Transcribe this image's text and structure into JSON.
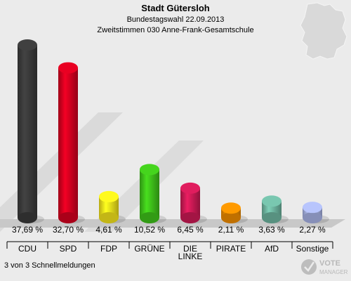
{
  "chart_data": {
    "type": "bar",
    "title": "Stadt Gütersloh",
    "subtitle": "Bundestagswahl 22.09.2013",
    "subtitle2": "Zweitstimmen 030 Anne-Frank-Gesamtschule",
    "categories": [
      "CDU",
      "SPD",
      "FDP",
      "GRÜNE",
      "DIE LINKE",
      "PIRATE",
      "AfD",
      "Sonstige"
    ],
    "values": [
      37.69,
      32.7,
      4.61,
      10.52,
      6.45,
      2.11,
      3.63,
      2.27
    ],
    "value_labels": [
      "37,69 %",
      "32,70 %",
      "4,61 %",
      "10,52 %",
      "6,45 %",
      "2,11 %",
      "3,63 %",
      "2,27 %"
    ],
    "colors": [
      "#3a3a3a",
      "#d4001f",
      "#f4e31b",
      "#3fc21a",
      "#cc1a55",
      "#f08c00",
      "#6eb5a0",
      "#a7b3e6"
    ],
    "ylim": [
      0,
      40
    ],
    "grid": false,
    "legend": "none"
  },
  "footer": {
    "status": "3 von 3 Schnellmeldungen",
    "logo_text": "VOTE MANAGER"
  }
}
